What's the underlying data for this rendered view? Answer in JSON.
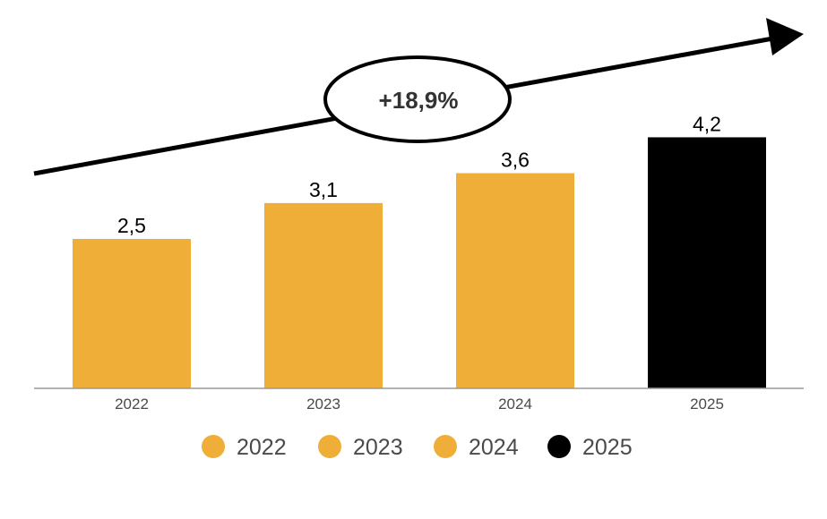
{
  "chart_data": {
    "type": "bar",
    "categories": [
      "2022",
      "2023",
      "2024",
      "2025"
    ],
    "values": [
      2.5,
      3.1,
      3.6,
      4.2
    ],
    "data_labels": [
      "2,5",
      "3,1",
      "3,6",
      "4,2"
    ],
    "bar_colors": [
      "#EFAE38",
      "#EFAE38",
      "#EFAE38",
      "#000000"
    ],
    "legend": [
      {
        "label": "2022",
        "color": "#EFAE38"
      },
      {
        "label": "2023",
        "color": "#EFAE38"
      },
      {
        "label": "2024",
        "color": "#EFAE38"
      },
      {
        "label": "2025",
        "color": "#000000"
      }
    ],
    "legend_position": "bottom",
    "annotation": {
      "text": "+18,9%",
      "shape": "ellipse-on-trend-arrow"
    },
    "trend_arrow": true,
    "ylim": [
      0,
      5
    ],
    "grid": false,
    "title": "",
    "xlabel": "",
    "ylabel": ""
  }
}
